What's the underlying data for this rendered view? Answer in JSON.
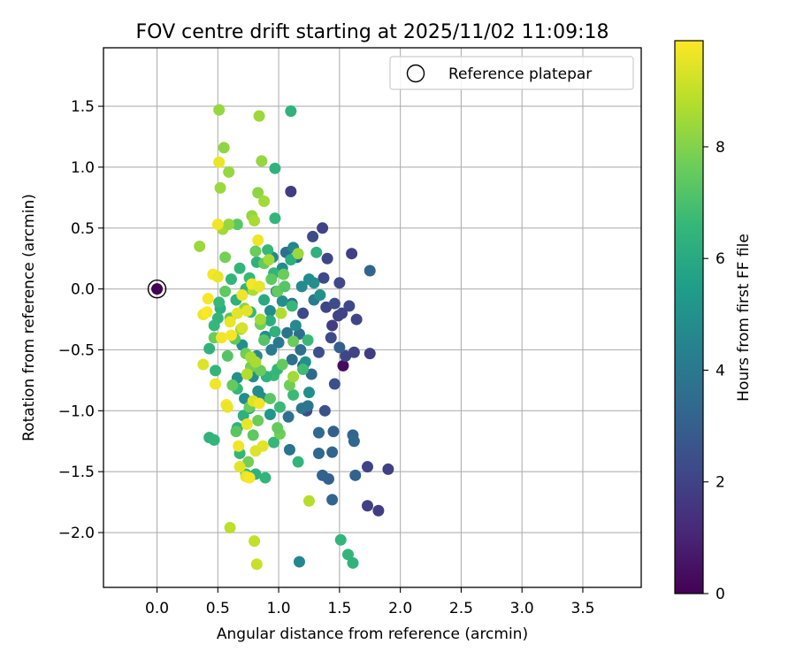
{
  "chart_data": {
    "type": "scatter",
    "title": "FOV centre drift starting at 2025/11/02 11:09:18",
    "xlabel": "Angular distance from reference (arcmin)",
    "ylabel": "Rotation from reference (arcmin)",
    "xlim": [
      -0.44,
      3.98
    ],
    "ylim": [
      -2.45,
      1.98
    ],
    "xticks": [
      "0.0",
      "0.5",
      "1.0",
      "1.5",
      "2.0",
      "2.5",
      "3.0",
      "3.5"
    ],
    "xtick_values": [
      0,
      0.5,
      1,
      1.5,
      2,
      2.5,
      3,
      3.5
    ],
    "yticks": [
      "1.5",
      "1.0",
      "0.5",
      "0.0",
      "−0.5",
      "−1.0",
      "−1.5",
      "−2.0"
    ],
    "ytick_values": [
      1.5,
      1,
      0.5,
      0,
      -0.5,
      -1,
      -1.5,
      -2
    ],
    "grid": true,
    "legend": {
      "position": "top-right",
      "label": "Reference platepar"
    },
    "reference_point": {
      "x": 0.0,
      "y": 0.0,
      "hours": 0
    },
    "colorbar": {
      "label": "Hours from first FF file",
      "colormap": "viridis",
      "range": [
        0,
        9.9
      ],
      "ticks": [
        "0",
        "2",
        "4",
        "6",
        "8"
      ],
      "tick_values": [
        0,
        2,
        4,
        6,
        8
      ],
      "colors": [
        "#440154",
        "#482878",
        "#3e4989",
        "#31688e",
        "#26828e",
        "#1f9e89",
        "#35b779",
        "#6ece58",
        "#b5de2b",
        "#fde725"
      ]
    },
    "points": [
      [
        1.53,
        -0.63,
        0.3
      ],
      [
        1.1,
        0.8,
        1.8
      ],
      [
        1.36,
        0.5,
        2.0
      ],
      [
        1.6,
        0.29,
        1.9
      ],
      [
        1.75,
        -0.53,
        1.8
      ],
      [
        1.9,
        -1.48,
        1.9
      ],
      [
        1.82,
        -1.82,
        1.8
      ],
      [
        1.73,
        -1.78,
        1.9
      ],
      [
        1.73,
        -1.46,
        2.0
      ],
      [
        1.49,
        -0.22,
        2.0
      ],
      [
        1.44,
        -0.3,
        1.8
      ],
      [
        1.55,
        -0.55,
        2.1
      ],
      [
        1.62,
        -0.52,
        2.0
      ],
      [
        1.37,
        0.09,
        2.2
      ],
      [
        1.4,
        0.25,
        2.1
      ],
      [
        1.5,
        0.05,
        2.2
      ],
      [
        1.39,
        -0.15,
        2.1
      ],
      [
        1.46,
        -0.12,
        2.3
      ],
      [
        1.52,
        -0.2,
        2.0
      ],
      [
        1.58,
        -0.14,
        2.2
      ],
      [
        1.64,
        -0.25,
        2.1
      ],
      [
        1.43,
        -0.4,
        2.3
      ],
      [
        1.2,
        -0.2,
        2.2
      ],
      [
        1.28,
        0.43,
        2.3
      ],
      [
        1.33,
        -0.52,
        2.4
      ],
      [
        1.23,
        -1.0,
        2.3
      ],
      [
        1.38,
        -1.0,
        2.5
      ],
      [
        1.46,
        -0.78,
        2.4
      ],
      [
        1.75,
        0.15,
        3.2
      ],
      [
        1.5,
        -0.48,
        3.0
      ],
      [
        1.2,
        -0.63,
        3.1
      ],
      [
        1.45,
        -1.17,
        3.0
      ],
      [
        1.61,
        -1.2,
        3.2
      ],
      [
        1.62,
        -1.25,
        3.3
      ],
      [
        1.63,
        -1.53,
        3.1
      ],
      [
        1.44,
        -1.34,
        3.2
      ],
      [
        1.33,
        -1.35,
        3.3
      ],
      [
        1.41,
        -1.56,
        3.0
      ],
      [
        1.44,
        -1.73,
        3.2
      ],
      [
        1.36,
        -1.53,
        3.1
      ],
      [
        1.33,
        -1.18,
        3.4
      ],
      [
        1.27,
        -0.7,
        3.3
      ],
      [
        1.17,
        -0.37,
        3.5
      ],
      [
        1.15,
        0.26,
        3.4
      ],
      [
        1.06,
        0.3,
        3.6
      ],
      [
        1.11,
        -0.12,
        3.5
      ],
      [
        1.18,
        -0.5,
        3.7
      ],
      [
        1.07,
        -0.36,
        3.8
      ],
      [
        1.11,
        -0.58,
        3.6
      ],
      [
        1.08,
        -1.05,
        3.7
      ],
      [
        1.09,
        -1.32,
        3.8
      ],
      [
        1.19,
        -0.98,
        3.9
      ],
      [
        1.24,
        -0.96,
        3.9
      ],
      [
        1.0,
        -0.44,
        4.0
      ],
      [
        0.94,
        -0.5,
        4.1
      ],
      [
        1.29,
        -0.09,
        4.1
      ],
      [
        1.17,
        -2.24,
        4.6
      ],
      [
        1.12,
        0.34,
        4.6
      ],
      [
        1.25,
        0.08,
        4.8
      ],
      [
        1.19,
        0.02,
        4.7
      ],
      [
        1.29,
        0.05,
        4.9
      ],
      [
        1.34,
        -0.05,
        5.0
      ],
      [
        1.22,
        -0.6,
        5.0
      ],
      [
        1.25,
        -0.85,
        4.9
      ],
      [
        1.14,
        -0.3,
        4.7
      ],
      [
        0.95,
        0.26,
        4.6
      ],
      [
        1.03,
        0.17,
        4.8
      ],
      [
        0.98,
        -0.02,
        5.0
      ],
      [
        1.03,
        -0.1,
        4.9
      ],
      [
        0.93,
        -0.18,
        4.8
      ],
      [
        0.89,
        -0.39,
        5.0
      ],
      [
        0.82,
        -0.55,
        4.7
      ],
      [
        0.79,
        -0.72,
        4.9
      ],
      [
        0.86,
        -0.89,
        5.0
      ],
      [
        0.76,
        -0.98,
        5.1
      ],
      [
        0.72,
        -0.9,
        4.8
      ],
      [
        0.66,
        -0.73,
        5.0
      ],
      [
        0.7,
        -0.46,
        4.9
      ],
      [
        0.83,
        -0.84,
        4.8
      ],
      [
        0.93,
        -1.03,
        5.2
      ],
      [
        1.1,
        1.46,
        6.4
      ],
      [
        1.51,
        -2.06,
        6.5
      ],
      [
        1.57,
        -2.18,
        6.5
      ],
      [
        1.61,
        -2.25,
        6.4
      ],
      [
        1.16,
        -1.42,
        6.5
      ],
      [
        1.31,
        0.3,
        6.3
      ],
      [
        1.1,
        0.24,
        6.2
      ],
      [
        0.97,
        0.99,
        6.4
      ],
      [
        0.97,
        0.58,
        6.5
      ],
      [
        0.88,
        -0.09,
        6.0
      ],
      [
        0.82,
        0.22,
        6.3
      ],
      [
        0.91,
        0.32,
        6.6
      ],
      [
        0.96,
        0.13,
        6.5
      ],
      [
        0.84,
        0.02,
        6.3
      ],
      [
        0.77,
        -0.19,
        6.6
      ],
      [
        0.73,
        0.0,
        6.4
      ],
      [
        0.65,
        -0.09,
        6.3
      ],
      [
        0.61,
        0.08,
        6.5
      ],
      [
        0.52,
        -0.16,
        6.2
      ],
      [
        0.5,
        -0.24,
        6.5
      ],
      [
        0.47,
        -0.3,
        6.6
      ],
      [
        0.43,
        -0.49,
        6.4
      ],
      [
        0.48,
        -0.67,
        6.5
      ],
      [
        0.66,
        -0.82,
        6.6
      ],
      [
        0.71,
        -1.04,
        6.3
      ],
      [
        0.66,
        -1.14,
        6.4
      ],
      [
        0.68,
        -1.35,
        6.5
      ],
      [
        0.73,
        -1.52,
        6.6
      ],
      [
        0.81,
        -1.52,
        6.3
      ],
      [
        0.89,
        -1.55,
        6.5
      ],
      [
        0.96,
        -1.26,
        6.6
      ],
      [
        1.01,
        -0.97,
        6.7
      ],
      [
        0.96,
        -0.71,
        6.7
      ],
      [
        0.9,
        -0.72,
        6.4
      ],
      [
        0.93,
        -0.26,
        6.2
      ],
      [
        0.97,
        -0.35,
        6.3
      ],
      [
        1.11,
        -0.14,
        6.6
      ],
      [
        0.99,
        -0.66,
        6.5
      ],
      [
        0.43,
        -1.22,
        6.4
      ],
      [
        0.47,
        -1.24,
        6.5
      ],
      [
        0.51,
        -0.11,
        6.6
      ],
      [
        0.68,
        0.17,
        6.5
      ],
      [
        0.76,
        0.09,
        6.6
      ],
      [
        1.12,
        -0.87,
        6.7
      ],
      [
        1.2,
        -0.66,
        6.8
      ],
      [
        1.24,
        -0.42,
        6.7
      ],
      [
        0.66,
        0.53,
        7.3
      ],
      [
        0.88,
        -0.42,
        7.2
      ],
      [
        0.56,
        -0.02,
        7.4
      ],
      [
        0.6,
        -0.24,
        7.3
      ],
      [
        0.64,
        -0.41,
        7.4
      ],
      [
        0.58,
        -0.55,
        7.2
      ],
      [
        0.62,
        -0.79,
        7.5
      ],
      [
        0.65,
        -1.17,
        7.3
      ],
      [
        0.76,
        -0.97,
        7.6
      ],
      [
        0.79,
        -1.2,
        7.4
      ],
      [
        0.85,
        -0.67,
        7.6
      ],
      [
        0.93,
        -0.9,
        7.3
      ],
      [
        1.03,
        -0.62,
        7.5
      ],
      [
        1.01,
        -1.19,
        7.7
      ],
      [
        0.99,
        -0.02,
        7.5
      ],
      [
        1.04,
        0.12,
        7.6
      ],
      [
        0.88,
        0.21,
        7.5
      ],
      [
        0.94,
        0.08,
        7.4
      ],
      [
        1.05,
        0.02,
        7.2
      ],
      [
        1.12,
        -0.43,
        7.6
      ],
      [
        1.09,
        -0.79,
        7.7
      ],
      [
        0.99,
        -1.14,
        7.5
      ],
      [
        0.83,
        -1.08,
        7.6
      ],
      [
        0.75,
        -1.42,
        7.8
      ],
      [
        0.85,
        -0.29,
        7.7
      ],
      [
        0.73,
        -0.53,
        7.7
      ],
      [
        0.77,
        -0.64,
        7.8
      ],
      [
        0.81,
        0.31,
        7.6
      ],
      [
        0.56,
        0.26,
        7.8
      ],
      [
        0.47,
        -0.4,
        7.6
      ],
      [
        0.51,
        1.47,
        8.3
      ],
      [
        0.55,
        1.16,
        8.2
      ],
      [
        0.59,
        0.96,
        8.3
      ],
      [
        0.52,
        0.83,
        8.4
      ],
      [
        0.86,
        1.05,
        8.3
      ],
      [
        0.84,
        1.42,
        8.4
      ],
      [
        0.83,
        0.79,
        8.2
      ],
      [
        0.88,
        0.72,
        8.5
      ],
      [
        0.78,
        0.6,
        8.3
      ],
      [
        0.8,
        0.56,
        8.6
      ],
      [
        0.35,
        0.35,
        8.4
      ],
      [
        0.54,
        0.49,
        8.5
      ],
      [
        0.59,
        0.53,
        8.3
      ],
      [
        0.72,
        -0.16,
        8.2
      ],
      [
        0.69,
        -0.33,
        8.4
      ],
      [
        0.77,
        -0.56,
        8.6
      ],
      [
        0.85,
        -0.25,
        8.5
      ],
      [
        0.79,
        -0.01,
        8.6
      ],
      [
        1.02,
        -0.2,
        8.7
      ],
      [
        1.16,
        0.29,
        8.4
      ],
      [
        1.12,
        -0.72,
        8.5
      ],
      [
        0.81,
        -0.6,
        8.6
      ],
      [
        0.74,
        -0.7,
        8.8
      ],
      [
        0.92,
        0.24,
        8.5
      ],
      [
        1.25,
        -1.74,
        8.8
      ],
      [
        0.6,
        -1.96,
        8.9
      ],
      [
        0.8,
        -2.07,
        9.0
      ],
      [
        0.82,
        -2.26,
        9.1
      ],
      [
        0.51,
        1.04,
        9.6
      ],
      [
        0.5,
        0.53,
        9.7
      ],
      [
        0.83,
        0.4,
        9.7
      ],
      [
        0.46,
        0.12,
        9.8
      ],
      [
        0.5,
        0.1,
        9.6
      ],
      [
        0.38,
        -0.21,
        9.7
      ],
      [
        0.41,
        -0.19,
        9.9
      ],
      [
        0.42,
        -0.08,
        9.8
      ],
      [
        0.53,
        -0.4,
        9.7
      ],
      [
        0.6,
        -0.27,
        9.6
      ],
      [
        0.61,
        -0.38,
        9.8
      ],
      [
        0.7,
        -0.05,
        9.7
      ],
      [
        0.74,
        -0.18,
        9.5
      ],
      [
        0.78,
        0.04,
        9.8
      ],
      [
        0.84,
        0.02,
        9.6
      ],
      [
        0.38,
        -0.62,
        9.4
      ],
      [
        0.48,
        -0.78,
        9.7
      ],
      [
        0.57,
        -0.95,
        9.8
      ],
      [
        0.58,
        -0.97,
        9.6
      ],
      [
        0.67,
        -1.29,
        9.7
      ],
      [
        0.68,
        -1.46,
        9.5
      ],
      [
        0.73,
        -1.54,
        9.6
      ],
      [
        0.76,
        -1.55,
        9.8
      ],
      [
        0.79,
        -0.92,
        9.4
      ],
      [
        0.84,
        -0.94,
        9.7
      ],
      [
        0.87,
        -1.29,
        9.5
      ],
      [
        0.81,
        -1.33,
        9.4
      ],
      [
        0.74,
        -1.11,
        9.6
      ],
      [
        0.7,
        -0.32,
        9.3
      ],
      [
        0.66,
        -0.2,
        9.5
      ]
    ]
  }
}
